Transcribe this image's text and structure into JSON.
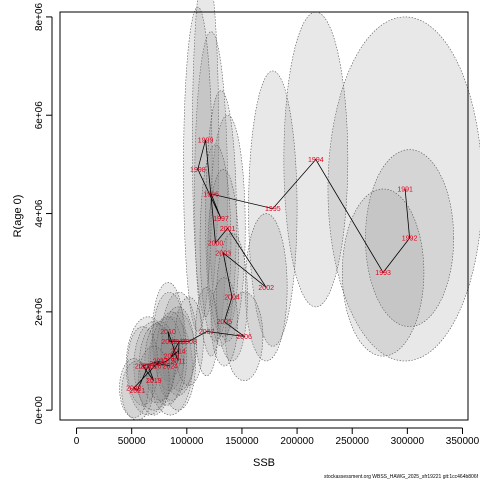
{
  "chart_data": {
    "type": "scatter",
    "title": "",
    "xlabel": "SSB",
    "ylabel": "R(age 0)",
    "xlim": [
      -15000,
      355000
    ],
    "ylim": [
      -200000,
      8100000
    ],
    "x_ticks": [
      0,
      50000,
      100000,
      150000,
      200000,
      250000,
      300000,
      350000
    ],
    "x_tick_labels": [
      "0",
      "50000",
      "100000",
      "150000",
      "200000",
      "250000",
      "300000",
      "350000"
    ],
    "y_ticks": [
      0,
      2000000,
      4000000,
      6000000,
      8000000
    ],
    "y_tick_labels": [
      "0e+00",
      "2e+06",
      "4e+06",
      "6e+06",
      "8e+06"
    ],
    "grid": false,
    "line_color": "#000000",
    "label_color": "#e8001c",
    "ellipse_fill": "#8c8c8c",
    "ellipse_stroke": "#555555",
    "points": [
      {
        "year": "1991",
        "x": 298000,
        "y": 4500000,
        "w": 70000,
        "h": 3500000
      },
      {
        "year": "1992",
        "x": 302000,
        "y": 3500000,
        "w": 40000,
        "h": 1800000
      },
      {
        "year": "1993",
        "x": 278000,
        "y": 2800000,
        "w": 37000,
        "h": 1700000
      },
      {
        "year": "1994",
        "x": 217000,
        "y": 5100000,
        "w": 29000,
        "h": 3000000
      },
      {
        "year": "1995",
        "x": 178000,
        "y": 4100000,
        "w": 22000,
        "h": 2800000
      },
      {
        "year": "1996",
        "x": 122000,
        "y": 4400000,
        "w": 15000,
        "h": 3300000
      },
      {
        "year": "1997",
        "x": 131000,
        "y": 3900000,
        "w": 14000,
        "h": 2600000
      },
      {
        "year": "1998",
        "x": 110000,
        "y": 4900000,
        "w": 13000,
        "h": 3300000
      },
      {
        "year": "1999",
        "x": 117000,
        "y": 5500000,
        "w": 12000,
        "h": 3600000
      },
      {
        "year": "2000",
        "x": 126000,
        "y": 3400000,
        "w": 14000,
        "h": 2000000
      },
      {
        "year": "2001",
        "x": 137000,
        "y": 3700000,
        "w": 16000,
        "h": 2300000
      },
      {
        "year": "2002",
        "x": 172000,
        "y": 2500000,
        "w": 19000,
        "h": 1500000
      },
      {
        "year": "2003",
        "x": 133000,
        "y": 3200000,
        "w": 14000,
        "h": 1700000
      },
      {
        "year": "2004",
        "x": 141000,
        "y": 2300000,
        "w": 14000,
        "h": 1300000
      },
      {
        "year": "2005",
        "x": 134000,
        "y": 1800000,
        "w": 12000,
        "h": 900000
      },
      {
        "year": "2006",
        "x": 152000,
        "y": 1500000,
        "w": 17000,
        "h": 900000
      },
      {
        "year": "2007",
        "x": 118000,
        "y": 1600000,
        "w": 10000,
        "h": 900000
      },
      {
        "year": "2008",
        "x": 102000,
        "y": 1400000,
        "w": 13000,
        "h": 900000
      },
      {
        "year": "2009",
        "x": 84000,
        "y": 1400000,
        "w": 15000,
        "h": 1000000
      },
      {
        "year": "2010",
        "x": 83000,
        "y": 1600000,
        "w": 14000,
        "h": 1000000
      },
      {
        "year": "2011",
        "x": 92000,
        "y": 1000000,
        "w": 16000,
        "h": 1000000
      },
      {
        "year": "2012",
        "x": 93000,
        "y": 1400000,
        "w": 16000,
        "h": 1000000
      },
      {
        "year": "2013",
        "x": 86000,
        "y": 1100000,
        "w": 14000,
        "h": 900000
      },
      {
        "year": "2014",
        "x": 92000,
        "y": 1200000,
        "w": 15000,
        "h": 900000
      },
      {
        "year": "2015",
        "x": 82000,
        "y": 1000000,
        "w": 15000,
        "h": 900000
      },
      {
        "year": "2016",
        "x": 70000,
        "y": 900000,
        "w": 18000,
        "h": 900000
      },
      {
        "year": "2017",
        "x": 76000,
        "y": 1000000,
        "w": 14000,
        "h": 800000
      },
      {
        "year": "2018",
        "x": 60000,
        "y": 900000,
        "w": 14000,
        "h": 800000
      },
      {
        "year": "2019",
        "x": 70000,
        "y": 600000,
        "w": 14000,
        "h": 700000
      },
      {
        "year": "2020",
        "x": 65000,
        "y": 900000,
        "w": 20000,
        "h": 1000000
      },
      {
        "year": "2021",
        "x": 55000,
        "y": 400000,
        "w": 14000,
        "h": 600000
      },
      {
        "year": "2022",
        "x": 52000,
        "y": 450000,
        "w": 13000,
        "h": 600000
      },
      {
        "year": "2023",
        "x": 73000,
        "y": 950000,
        "w": 16000,
        "h": 800000
      },
      {
        "year": "2024",
        "x": 85000,
        "y": 900000,
        "w": 20000,
        "h": 1000000
      }
    ]
  },
  "footer": {
    "source_text": "stockassessment.org WBSS_HAWG_2025_sfr19221 git:1cc464b806f"
  }
}
